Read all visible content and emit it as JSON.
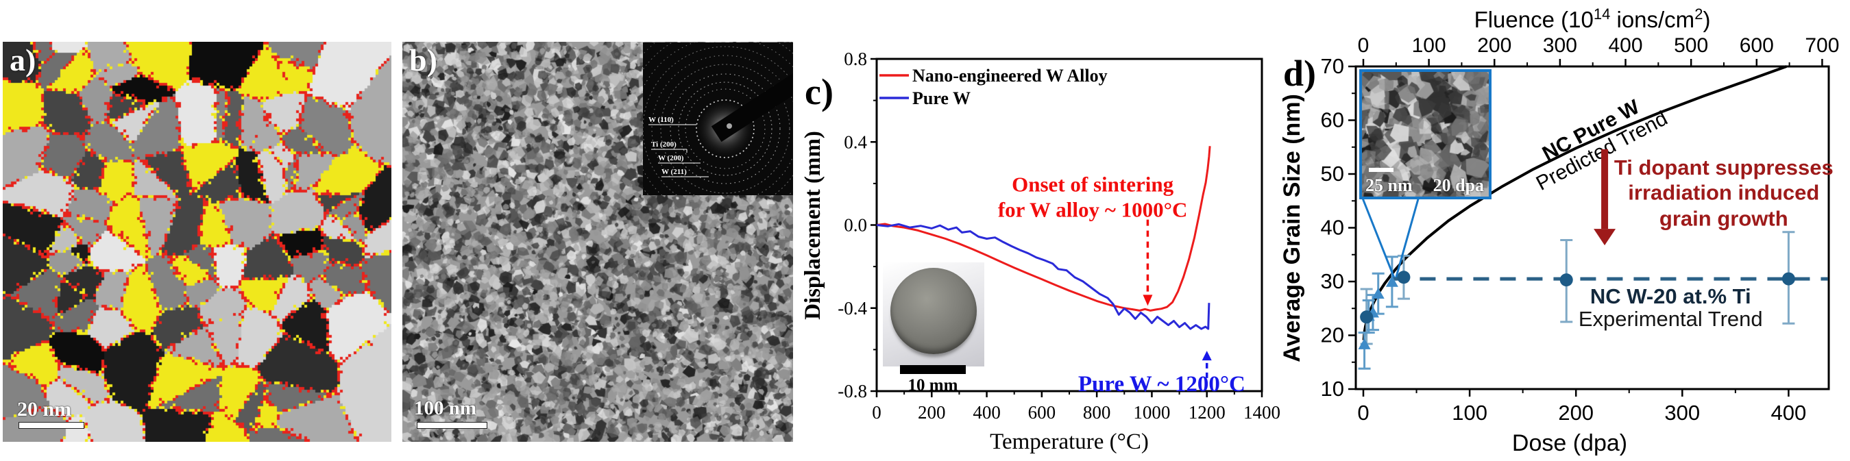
{
  "colors": {
    "red_curve": "#ed1c1c",
    "blue_curve": "#2a2ad8",
    "red_annotation": "#f20d0d",
    "blue_annotation": "#1717e8",
    "dark_red": "#9e1a1a",
    "trend_dash": "#2b6187",
    "circle_marker": "#1d5b87",
    "triangle_marker": "#3e8bc8",
    "err_circle": "#7fa9c6",
    "err_triangle": "#5f9cc8",
    "inset_blue": "#1878c8",
    "grain_yellow": "#f0e81c",
    "boundary_red": "#e8231c",
    "nc_w20_label": "#13293d",
    "axis": "#000000"
  },
  "panels": {
    "a": {
      "label": "a)",
      "scalebar_label": "20 nm",
      "type": "grain-orientation-map"
    },
    "b": {
      "label": "b)",
      "scalebar_label": "100 nm",
      "type": "TEM-micrograph",
      "diffraction": {
        "labels": [
          "W (110)",
          "Ti (200)",
          "W (200)",
          "W (211)"
        ]
      }
    },
    "c": {
      "label": "c)"
    },
    "d": {
      "label": "d)",
      "inset": {
        "scalebar_label": "25 nm",
        "dose_label": "20 dpa"
      }
    }
  },
  "chart_data": [
    {
      "panel": "c",
      "type": "line",
      "xlabel": "Temperature (°C)",
      "ylabel": "Displacement (mm)",
      "xlim": [
        0,
        1400
      ],
      "ylim": [
        -0.8,
        0.8
      ],
      "xticks": [
        0,
        200,
        400,
        600,
        800,
        1000,
        1200,
        1400
      ],
      "xticks_minor": [
        100,
        300,
        500,
        700,
        900,
        1100,
        1300
      ],
      "yticks": [
        "0.8",
        "0.4",
        "0.0",
        "-0.4",
        "-0.8"
      ],
      "ytick_values": [
        0.8,
        0.4,
        0.0,
        -0.4,
        -0.8
      ],
      "yticks_minor": [
        0.6,
        0.2,
        -0.2,
        -0.6
      ],
      "grid": false,
      "legend_position": "top-left",
      "series": [
        {
          "name": "Nano-engineered W Alloy",
          "color": "#ed1c1c",
          "points": [
            [
              0,
              0
            ],
            [
              30,
              0.005
            ],
            [
              60,
              -0.005
            ],
            [
              100,
              -0.012
            ],
            [
              150,
              -0.026
            ],
            [
              200,
              -0.046
            ],
            [
              250,
              -0.066
            ],
            [
              300,
              -0.09
            ],
            [
              350,
              -0.117
            ],
            [
              400,
              -0.146
            ],
            [
              450,
              -0.176
            ],
            [
              500,
              -0.206
            ],
            [
              550,
              -0.234
            ],
            [
              600,
              -0.261
            ],
            [
              650,
              -0.289
            ],
            [
              700,
              -0.316
            ],
            [
              750,
              -0.341
            ],
            [
              800,
              -0.366
            ],
            [
              850,
              -0.386
            ],
            [
              900,
              -0.4
            ],
            [
              930,
              -0.406
            ],
            [
              955,
              -0.412
            ],
            [
              975,
              -0.405
            ],
            [
              995,
              -0.412
            ],
            [
              1015,
              -0.407
            ],
            [
              1035,
              -0.403
            ],
            [
              1055,
              -0.395
            ],
            [
              1075,
              -0.372
            ],
            [
              1095,
              -0.32
            ],
            [
              1115,
              -0.25
            ],
            [
              1135,
              -0.165
            ],
            [
              1155,
              -0.06
            ],
            [
              1172,
              0.05
            ],
            [
              1186,
              0.145
            ],
            [
              1196,
              0.205
            ],
            [
              1203,
              0.27
            ],
            [
              1208,
              0.33
            ],
            [
              1211,
              0.38
            ]
          ]
        },
        {
          "name": "Pure W",
          "color": "#2a2ad8",
          "points": [
            [
              0,
              0
            ],
            [
              40,
              -0.006
            ],
            [
              80,
              0.004
            ],
            [
              120,
              -0.012
            ],
            [
              160,
              -0.004
            ],
            [
              200,
              -0.016
            ],
            [
              230,
              -0.002
            ],
            [
              260,
              -0.022
            ],
            [
              290,
              -0.012
            ],
            [
              310,
              -0.036
            ],
            [
              340,
              -0.03
            ],
            [
              370,
              -0.056
            ],
            [
              400,
              -0.066
            ],
            [
              430,
              -0.06
            ],
            [
              460,
              -0.082
            ],
            [
              490,
              -0.102
            ],
            [
              520,
              -0.12
            ],
            [
              550,
              -0.136
            ],
            [
              580,
              -0.156
            ],
            [
              610,
              -0.17
            ],
            [
              640,
              -0.186
            ],
            [
              660,
              -0.212
            ],
            [
              690,
              -0.218
            ],
            [
              720,
              -0.252
            ],
            [
              750,
              -0.272
            ],
            [
              780,
              -0.302
            ],
            [
              810,
              -0.332
            ],
            [
              840,
              -0.352
            ],
            [
              860,
              -0.382
            ],
            [
              880,
              -0.432
            ],
            [
              900,
              -0.402
            ],
            [
              920,
              -0.422
            ],
            [
              940,
              -0.452
            ],
            [
              960,
              -0.422
            ],
            [
              980,
              -0.442
            ],
            [
              1000,
              -0.472
            ],
            [
              1020,
              -0.442
            ],
            [
              1040,
              -0.462
            ],
            [
              1060,
              -0.482
            ],
            [
              1080,
              -0.462
            ],
            [
              1100,
              -0.492
            ],
            [
              1120,
              -0.472
            ],
            [
              1140,
              -0.5
            ],
            [
              1160,
              -0.482
            ],
            [
              1180,
              -0.5
            ],
            [
              1195,
              -0.49
            ],
            [
              1205,
              -0.5
            ],
            [
              1208,
              -0.375
            ]
          ]
        }
      ],
      "annotations": [
        {
          "id": "onset",
          "color": "#f20d0d",
          "lines": [
            "Onset of sintering",
            "for W alloy ~ 1000°C"
          ],
          "x": 785,
          "y_lines": [
            0.194,
            0.072
          ],
          "arrow": {
            "x": 985,
            "y_from": 0.026,
            "y_to": -0.336,
            "style": "dashed-down"
          }
        },
        {
          "id": "purew",
          "color": "#1717e8",
          "lines": [
            "Pure W ~ 1200°C"
          ],
          "x": 1036,
          "y_lines": [
            -0.8
          ],
          "arrow": {
            "x": 1200,
            "y_from": -0.737,
            "y_to": -0.652,
            "style": "dashed-up"
          }
        }
      ],
      "inset_photo": {
        "scalebar_label": "10 mm",
        "content": "sintered-disc-photograph"
      }
    },
    {
      "panel": "d",
      "type": "line+scatter",
      "xlabel": "Dose (dpa)",
      "ylabel": "Average Grain Size (nm)",
      "top_xlabel_parts": [
        "Fluence (10",
        "14",
        " ions/cm",
        "2",
        ")"
      ],
      "top_xlabel_text": "Fluence (10^14 ions/cm^2)",
      "xlim": [
        0,
        438
      ],
      "top_xlim": [
        0,
        710
      ],
      "ylim": [
        10,
        70
      ],
      "xticks": [
        0,
        100,
        200,
        300,
        400
      ],
      "xticks_minor": [
        50,
        150,
        250,
        350
      ],
      "top_xticks": [
        0,
        100,
        200,
        300,
        400,
        500,
        600,
        700
      ],
      "top_xticks_minor": [
        50,
        150,
        250,
        350,
        450,
        550,
        650
      ],
      "yticks": [
        10,
        20,
        30,
        40,
        50,
        60,
        70
      ],
      "yticks_minor": [
        15,
        25,
        35,
        45,
        55,
        65
      ],
      "grid": false,
      "series": [
        {
          "name": "NC Pure W Predicted Trend",
          "type": "line",
          "color": "#000000",
          "label_lines": [
            "NC Pure W",
            "Predicted Trend"
          ],
          "label_pos": {
            "x": 220,
            "y": 55.9,
            "angle": -28
          },
          "points": [
            [
              0.4,
              19.1
            ],
            [
              1,
              20.6
            ],
            [
              2,
              21.7
            ],
            [
              4,
              23.2
            ],
            [
              7,
              24.9
            ],
            [
              10,
              26.2
            ],
            [
              15,
              28.1
            ],
            [
              20,
              29.6
            ],
            [
              30,
              32.2
            ],
            [
              40,
              34.4
            ],
            [
              60,
              38.1
            ],
            [
              80,
              41.3
            ],
            [
              100,
              44.0
            ],
            [
              130,
              47.6
            ],
            [
              160,
              50.9
            ],
            [
              200,
              54.8
            ],
            [
              240,
              58.3
            ],
            [
              280,
              61.5
            ],
            [
              320,
              64.5
            ],
            [
              360,
              67.3
            ],
            [
              398,
              70.0
            ]
          ]
        },
        {
          "name": "NC W-20 at.% Ti Experimental Trend",
          "type": "dashed+markers",
          "color": "#2b6187",
          "dash_y": 30.5,
          "dash_x": [
            28,
            437
          ],
          "label_lines": [
            "NC W-20 at.% Ti",
            "Experimental Trend"
          ],
          "label_pos": {
            "x": 289,
            "y": 25.9
          },
          "circles": [
            {
              "x": 3,
              "y": 23.4,
              "lo": 18.4,
              "hi": 28.6
            },
            {
              "x": 38,
              "y": 30.8,
              "lo": 26.8,
              "hi": 34.8
            },
            {
              "x": 191,
              "y": 30.3,
              "lo": 22.5,
              "hi": 37.7
            },
            {
              "x": 400,
              "y": 30.5,
              "lo": 22.2,
              "hi": 39.2
            }
          ],
          "triangles": [
            {
              "x": 1,
              "y": 18.3,
              "lo": 13.8,
              "hi": 20.5
            },
            {
              "x": 5,
              "y": 23.6,
              "lo": 20.5,
              "hi": 26.5
            },
            {
              "x": 9,
              "y": 24.2,
              "lo": 21.0,
              "hi": 27.5
            },
            {
              "x": 14,
              "y": 27.7,
              "lo": 24.0,
              "hi": 31.5
            },
            {
              "x": 27,
              "y": 29.9,
              "lo": 25.3,
              "hi": 34.6
            }
          ]
        }
      ],
      "annotations": [
        {
          "id": "suppress",
          "color": "#9e1a1a",
          "lines": [
            "Ti dopant suppresses",
            "irradiation induced",
            "grain growth"
          ],
          "x": 339,
          "y_lines": [
            49.9,
            45.2,
            40.4
          ],
          "arrow": {
            "x": 227,
            "y_from": 54.6,
            "y_to": 39.8,
            "style": "solid-down-thick"
          }
        }
      ],
      "inset_links_to": {
        "x": 30,
        "y": 30.2
      }
    }
  ]
}
